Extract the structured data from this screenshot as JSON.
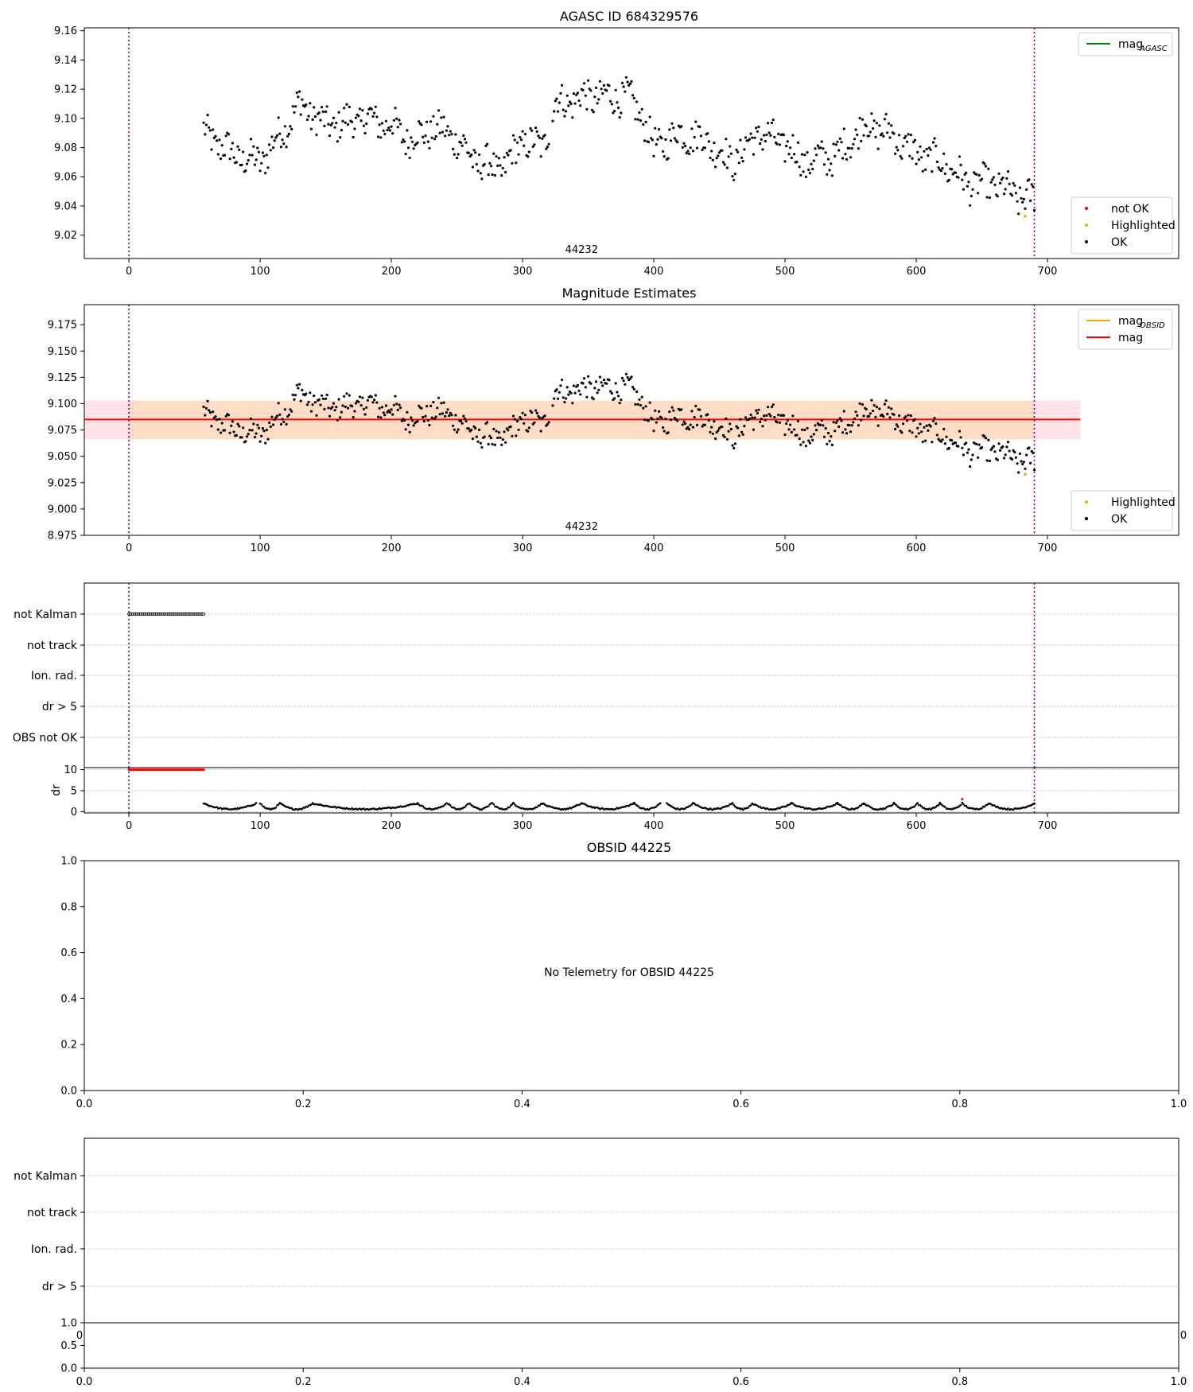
{
  "colors": {
    "ok": "#000000",
    "not_ok": "#ff0000",
    "highlighted": "#ffa500",
    "mag_agasc": "#008000",
    "mag_obsid": "#ffa500",
    "mag": "#ff0000",
    "obs_marker": "#800080",
    "band_obsid": "#ffdab9",
    "band_mag": "#ffc0cb"
  },
  "chart_data": [
    {
      "id": "p1",
      "type": "scatter",
      "title": "AGASC ID 684329576",
      "xlim": [
        -34,
        800
      ],
      "ylim": [
        9.004,
        9.162
      ],
      "xticks": [
        "0",
        "100",
        "200",
        "300",
        "400",
        "500",
        "600",
        "700"
      ],
      "xtick_values": [
        0,
        100,
        200,
        300,
        400,
        500,
        600,
        700
      ],
      "yticks": [
        "9.02",
        "9.04",
        "9.06",
        "9.08",
        "9.10",
        "9.12",
        "9.14",
        "9.16"
      ],
      "ytick_values": [
        9.02,
        9.04,
        9.06,
        9.08,
        9.1,
        9.12,
        9.14,
        9.16
      ],
      "obsid_lines_x": [
        0,
        690
      ],
      "obsid_label": {
        "text": "44232",
        "x": 345,
        "y": 9.006
      },
      "series": [
        {
          "name": "OK",
          "kind": "scatter",
          "color": "ok",
          "synthetic": "mag"
        },
        {
          "name": "Highlighted",
          "kind": "scatter",
          "color": "highlighted",
          "points": [
            [
              683,
              9.033
            ]
          ]
        },
        {
          "name": "not OK",
          "kind": "scatter",
          "color": "not_ok",
          "points": []
        }
      ],
      "legends": [
        {
          "position": "upper right",
          "entries": [
            {
              "label": "mag",
              "sub": "AGASC",
              "kind": "line",
              "color": "mag_agasc"
            }
          ]
        },
        {
          "position": "lower right",
          "entries": [
            {
              "label": "not OK",
              "kind": "dot",
              "color": "not_ok"
            },
            {
              "label": "Highlighted",
              "kind": "dot",
              "color": "highlighted"
            },
            {
              "label": "OK",
              "kind": "dot",
              "color": "ok"
            }
          ]
        }
      ]
    },
    {
      "id": "p2",
      "type": "scatter",
      "title": "Magnitude Estimates",
      "xlim": [
        -34,
        800
      ],
      "ylim": [
        8.975,
        9.194
      ],
      "xticks": [
        "0",
        "100",
        "200",
        "300",
        "400",
        "500",
        "600",
        "700"
      ],
      "xtick_values": [
        0,
        100,
        200,
        300,
        400,
        500,
        600,
        700
      ],
      "yticks": [
        "8.975",
        "9.000",
        "9.025",
        "9.050",
        "9.075",
        "9.100",
        "9.125",
        "9.150",
        "9.175"
      ],
      "ytick_values": [
        8.975,
        9.0,
        9.025,
        9.05,
        9.075,
        9.1,
        9.125,
        9.15,
        9.175
      ],
      "obsid_lines_x": [
        0,
        690
      ],
      "obsid_label": {
        "text": "44232",
        "x": 345,
        "y": 8.977
      },
      "bands": [
        {
          "x": [
            -34,
            725
          ],
          "y": [
            9.066,
            9.103
          ],
          "color": "band_mag",
          "opacity": 0.45
        },
        {
          "x": [
            0,
            690
          ],
          "y": [
            9.066,
            9.103
          ],
          "color": "band_obsid",
          "opacity": 0.75
        }
      ],
      "hlines": [
        {
          "y": 9.085,
          "x": [
            -34,
            725
          ],
          "color": "mag"
        }
      ],
      "series": [
        {
          "name": "OK",
          "kind": "scatter",
          "color": "ok",
          "synthetic": "mag"
        },
        {
          "name": "Highlighted",
          "kind": "scatter",
          "color": "highlighted",
          "points": [
            [
              683,
              9.033
            ]
          ]
        }
      ],
      "legends": [
        {
          "position": "upper right",
          "entries": [
            {
              "label": "mag",
              "sub": "OBSID",
              "kind": "line",
              "color": "mag_obsid"
            },
            {
              "label": "mag",
              "kind": "line",
              "color": "mag"
            }
          ]
        },
        {
          "position": "lower right",
          "entries": [
            {
              "label": "Highlighted",
              "kind": "dot",
              "color": "highlighted"
            },
            {
              "label": "OK",
              "kind": "dot",
              "color": "ok"
            }
          ]
        }
      ]
    },
    {
      "id": "p3",
      "type": "scatter",
      "xlim": [
        -34,
        800
      ],
      "flag_labels": [
        "not Kalman",
        "not track",
        "Ion. rad.",
        "dr > 5",
        "OBS not OK"
      ],
      "flag_points": [
        {
          "flag": "not Kalman",
          "x_range": [
            0,
            57
          ],
          "step": 1
        }
      ],
      "obsid_lines_x": [
        0,
        690
      ]
    },
    {
      "id": "p3b",
      "type": "scatter",
      "xlim": [
        -34,
        800
      ],
      "ylim": [
        -0.3,
        10.5
      ],
      "ylabel": "dr",
      "yticks": [
        "0",
        "5",
        "10"
      ],
      "ytick_values": [
        0,
        5,
        10
      ],
      "xticks": [
        "0",
        "100",
        "200",
        "300",
        "400",
        "500",
        "600",
        "700"
      ],
      "xtick_values": [
        0,
        100,
        200,
        300,
        400,
        500,
        600,
        700
      ],
      "obsid_lines_x": [
        0,
        690
      ],
      "series": [
        {
          "name": "dr not OK",
          "kind": "scatter",
          "color": "not_ok",
          "x_range": [
            0,
            57
          ],
          "y": 10
        },
        {
          "name": "dr",
          "kind": "scatter",
          "color": "ok",
          "synthetic": "dr"
        }
      ]
    },
    {
      "id": "p4",
      "type": "scatter",
      "title": "OBSID 44225",
      "xlim": [
        0,
        1
      ],
      "ylim": [
        0,
        1
      ],
      "xticks": [
        "0.0",
        "0.2",
        "0.4",
        "0.6",
        "0.8",
        "1.0"
      ],
      "xtick_values": [
        0,
        0.2,
        0.4,
        0.6,
        0.8,
        1.0
      ],
      "yticks": [
        "0.0",
        "0.2",
        "0.4",
        "0.6",
        "0.8",
        "1.0"
      ],
      "ytick_values": [
        0,
        0.2,
        0.4,
        0.6,
        0.8,
        1.0
      ],
      "message": "No Telemetry for OBSID 44225"
    },
    {
      "id": "p5",
      "type": "scatter",
      "flag_labels": [
        "not Kalman",
        "not track",
        "Ion. rad.",
        "dr > 5"
      ],
      "hidden_xticks": [
        "0",
        "0"
      ]
    },
    {
      "id": "p5b",
      "type": "scatter",
      "xlim": [
        0,
        1
      ],
      "ylim": [
        0,
        1
      ],
      "xticks": [
        "0.0",
        "0.2",
        "0.4",
        "0.6",
        "0.8",
        "1.0"
      ],
      "xtick_values": [
        0,
        0.2,
        0.4,
        0.6,
        0.8,
        1.0
      ],
      "yticks": [
        "0.0",
        "0.5",
        "1.0"
      ],
      "ytick_values": [
        0,
        0.5,
        1.0
      ]
    }
  ]
}
